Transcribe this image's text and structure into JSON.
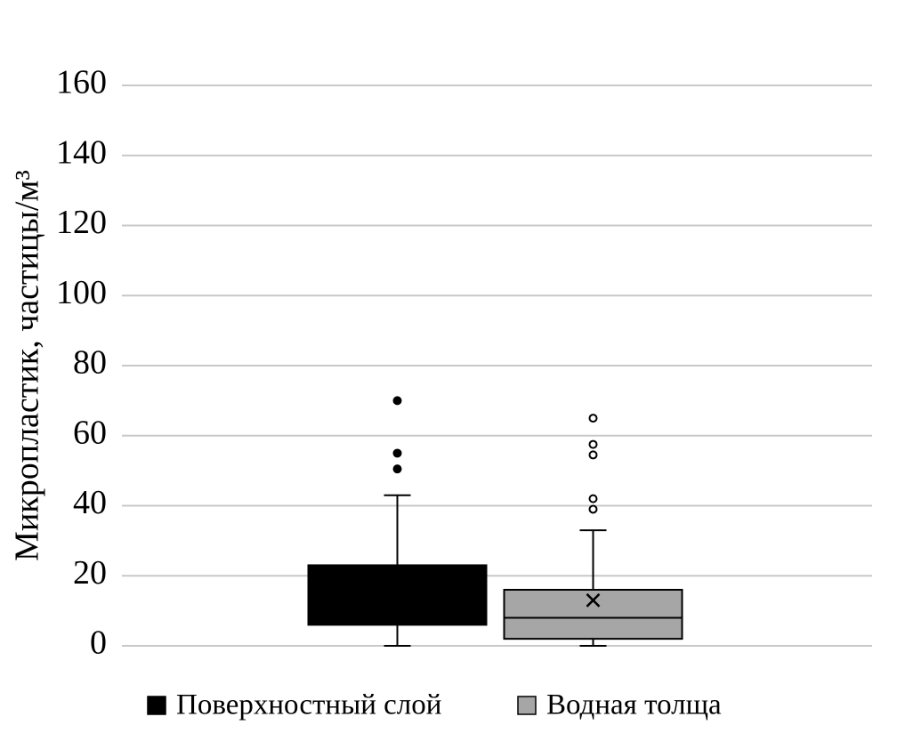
{
  "chart_data": {
    "type": "box",
    "ylabel": "Микропластик, частицы/м³",
    "ylim": [
      0,
      160
    ],
    "yticks": [
      0,
      20,
      40,
      60,
      80,
      100,
      120,
      140,
      160
    ],
    "grid": true,
    "legend": "bottom",
    "series": [
      {
        "name": "Поверхностный слой",
        "color": "#000000",
        "outlier_fill": "#000000",
        "min": 0,
        "q1": 6,
        "q3": 23,
        "max": 43,
        "outliers": [
          70,
          55,
          50.5
        ]
      },
      {
        "name": "Водная толща",
        "color": "#a6a6a6",
        "outlier_fill": "#ffffff",
        "min": 0,
        "q1": 2,
        "median": 8,
        "q3": 16,
        "max": 33,
        "mean": 13,
        "outliers": [
          65,
          57.5,
          54.5,
          42,
          39
        ]
      }
    ]
  }
}
